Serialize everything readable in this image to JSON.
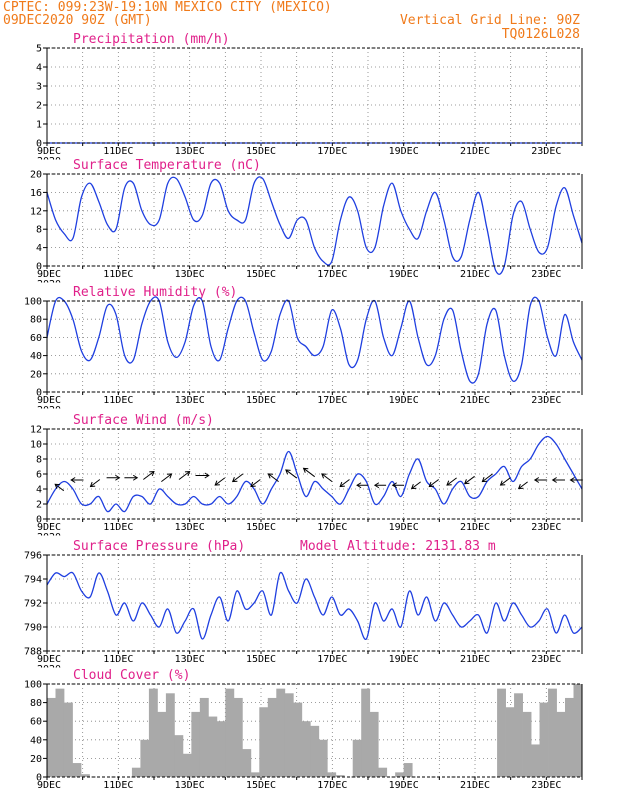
{
  "header": {
    "line1_left": "CPTEC:   099:23W-19:10N   MEXICO CITY (MEXICO)",
    "line2_left": "09DEC2020 90Z (GMT)",
    "line2_right": "Vertical Grid Line: 90Z",
    "line3_right": "TQ0126L028"
  },
  "colors": {
    "header": "#f07a1a",
    "title": "#e0208a",
    "line": "#1f3fe0",
    "bar": "#a9a9a9",
    "grid": "#7f7f7f"
  },
  "chart_data": [
    {
      "type": "line",
      "title": "Precipitation (mm/h)",
      "x_tick_labels": [
        "9DEC",
        "11DEC",
        "13DEC",
        "15DEC",
        "17DEC",
        "19DEC",
        "21DEC",
        "23DEC"
      ],
      "x_clipped_label": "2020",
      "ylim": [
        0,
        5
      ],
      "y_ticks": [
        0,
        1,
        2,
        3,
        4,
        5
      ],
      "grid": true,
      "series": [
        {
          "values": [
            0,
            0,
            0,
            0,
            0,
            0,
            0,
            0,
            0,
            0,
            0,
            0,
            0,
            0,
            0,
            0,
            0,
            0,
            0,
            0,
            0,
            0,
            0,
            0,
            0,
            0,
            0,
            0,
            0,
            0,
            0,
            0,
            0,
            0,
            0,
            0,
            0,
            0,
            0,
            0,
            0,
            0,
            0,
            0,
            0,
            0,
            0,
            0,
            0,
            0,
            0,
            0,
            0,
            0,
            0,
            0,
            0,
            0,
            0,
            0,
            0,
            0,
            0
          ]
        }
      ]
    },
    {
      "type": "line",
      "title": "Surface Temperature (nC)",
      "x_tick_labels": [
        "9DEC",
        "11DEC",
        "13DEC",
        "15DEC",
        "17DEC",
        "19DEC",
        "21DEC",
        "23DEC"
      ],
      "x_clipped_label": "2020",
      "ylim": [
        0,
        20
      ],
      "y_ticks": [
        0,
        4,
        8,
        12,
        16,
        20
      ],
      "grid": true,
      "series": [
        {
          "values": [
            16,
            10,
            7,
            6,
            15,
            18,
            14,
            9,
            8,
            17,
            18,
            12,
            9,
            10,
            18,
            19,
            15,
            10,
            11,
            18,
            18,
            12,
            10,
            10,
            18,
            19,
            14,
            9,
            6,
            10,
            10,
            4,
            1,
            1,
            10,
            15,
            12,
            4,
            4,
            13,
            18,
            12,
            8,
            6,
            12,
            16,
            10,
            2,
            2,
            10,
            16,
            8,
            -1,
            0,
            11,
            14,
            8,
            3,
            4,
            13,
            17,
            11,
            5
          ]
        }
      ]
    },
    {
      "type": "line",
      "title": "Relative Humidity (%)",
      "x_tick_labels": [
        "9DEC",
        "11DEC",
        "13DEC",
        "15DEC",
        "17DEC",
        "19DEC",
        "21DEC",
        "23DEC"
      ],
      "x_clipped_label": "2020",
      "ylim": [
        0,
        100
      ],
      "y_ticks": [
        0,
        20,
        40,
        60,
        80,
        100
      ],
      "grid": true,
      "series": [
        {
          "values": [
            60,
            100,
            100,
            80,
            45,
            35,
            60,
            95,
            85,
            40,
            35,
            75,
            100,
            100,
            55,
            38,
            55,
            95,
            100,
            50,
            35,
            70,
            100,
            100,
            65,
            35,
            45,
            85,
            100,
            60,
            50,
            40,
            50,
            90,
            70,
            30,
            35,
            80,
            100,
            60,
            40,
            70,
            100,
            60,
            30,
            40,
            80,
            90,
            45,
            12,
            20,
            75,
            90,
            40,
            12,
            30,
            95,
            100,
            60,
            40,
            85,
            55,
            35
          ]
        }
      ]
    },
    {
      "type": "line",
      "title": "Surface Wind (m/s)",
      "x_tick_labels": [
        "9DEC",
        "11DEC",
        "13DEC",
        "15DEC",
        "17DEC",
        "19DEC",
        "21DEC",
        "23DEC"
      ],
      "x_clipped_label": "2020",
      "ylim": [
        0,
        12
      ],
      "y_ticks": [
        0,
        2,
        4,
        6,
        8,
        10,
        12
      ],
      "grid": true,
      "series": [
        {
          "values": [
            2,
            4,
            5,
            4,
            2,
            2,
            3,
            1,
            2,
            1,
            3,
            3,
            2,
            4,
            3,
            2,
            2,
            3,
            2,
            2,
            3,
            2,
            3,
            5,
            4,
            2,
            4,
            6,
            9,
            6,
            3,
            5,
            4,
            3,
            2,
            4,
            6,
            5,
            2,
            3,
            5,
            3,
            6,
            8,
            5,
            4,
            2,
            4,
            5,
            3,
            3,
            5,
            6,
            7,
            5,
            7,
            8,
            10,
            11,
            10,
            8,
            6,
            4
          ]
        }
      ],
      "wind_arrows": [
        {
          "day": 9.35,
          "speed": 4.2,
          "dir": "nw"
        },
        {
          "day": 9.85,
          "speed": 5.2,
          "dir": "w"
        },
        {
          "day": 10.35,
          "speed": 4.8,
          "dir": "sw"
        },
        {
          "day": 10.85,
          "speed": 5.5,
          "dir": "e"
        },
        {
          "day": 11.35,
          "speed": 5.5,
          "dir": "e"
        },
        {
          "day": 11.85,
          "speed": 5.8,
          "dir": "ne"
        },
        {
          "day": 12.35,
          "speed": 5.5,
          "dir": "ne"
        },
        {
          "day": 12.85,
          "speed": 5.8,
          "dir": "ne"
        },
        {
          "day": 13.35,
          "speed": 5.8,
          "dir": "e"
        },
        {
          "day": 13.85,
          "speed": 5.0,
          "dir": "sw"
        },
        {
          "day": 14.35,
          "speed": 5.5,
          "dir": "sw"
        },
        {
          "day": 14.85,
          "speed": 4.8,
          "dir": "sw"
        },
        {
          "day": 15.35,
          "speed": 5.5,
          "dir": "nw"
        },
        {
          "day": 15.85,
          "speed": 6.0,
          "dir": "nw"
        },
        {
          "day": 16.35,
          "speed": 6.2,
          "dir": "nw"
        },
        {
          "day": 16.85,
          "speed": 5.5,
          "dir": "nw"
        },
        {
          "day": 17.35,
          "speed": 4.8,
          "dir": "sw"
        },
        {
          "day": 17.85,
          "speed": 4.5,
          "dir": "w"
        },
        {
          "day": 18.35,
          "speed": 4.5,
          "dir": "w"
        },
        {
          "day": 18.85,
          "speed": 4.5,
          "dir": "w"
        },
        {
          "day": 19.35,
          "speed": 4.5,
          "dir": "sw"
        },
        {
          "day": 19.85,
          "speed": 4.8,
          "dir": "sw"
        },
        {
          "day": 20.35,
          "speed": 5.0,
          "dir": "sw"
        },
        {
          "day": 20.85,
          "speed": 5.2,
          "dir": "sw"
        },
        {
          "day": 21.35,
          "speed": 5.5,
          "dir": "sw"
        },
        {
          "day": 21.85,
          "speed": 5.0,
          "dir": "sw"
        },
        {
          "day": 22.35,
          "speed": 4.5,
          "dir": "sw"
        },
        {
          "day": 22.85,
          "speed": 5.2,
          "dir": "w"
        },
        {
          "day": 23.35,
          "speed": 5.2,
          "dir": "w"
        },
        {
          "day": 23.85,
          "speed": 5.2,
          "dir": "w"
        }
      ]
    },
    {
      "type": "line",
      "title": "Surface Pressure (hPa)",
      "annotation": "Model Altitude: 2131.83 m",
      "x_tick_labels": [
        "9DEC",
        "11DEC",
        "13DEC",
        "15DEC",
        "17DEC",
        "19DEC",
        "21DEC",
        "23DEC"
      ],
      "x_clipped_label": "2020",
      "ylim": [
        788,
        796
      ],
      "y_ticks": [
        788,
        790,
        792,
        794,
        796
      ],
      "grid": true,
      "series": [
        {
          "values": [
            793.5,
            794.5,
            794.2,
            794.5,
            793,
            792.5,
            794.5,
            793,
            791,
            792,
            790.5,
            792,
            791,
            790,
            791.5,
            789.5,
            790.5,
            791.5,
            789,
            791,
            792.5,
            790.5,
            793,
            791.5,
            792,
            793,
            791,
            794.5,
            793,
            792,
            794,
            792.5,
            791,
            792.5,
            791,
            791.5,
            790.5,
            789,
            792,
            790.5,
            791.5,
            790,
            793,
            791,
            792.5,
            790.5,
            792,
            791,
            790,
            790.5,
            791,
            789.5,
            792,
            790.5,
            792,
            791,
            790,
            790.5,
            791.5,
            789.5,
            791,
            789.5,
            790
          ]
        }
      ]
    },
    {
      "type": "bar",
      "title": "Cloud Cover (%)",
      "x_tick_labels": [
        "9DEC",
        "11DEC",
        "13DEC",
        "15DEC",
        "17DEC",
        "19DEC",
        "21DEC",
        "23DEC"
      ],
      "x_clipped_label": "2020",
      "ylim": [
        0,
        100
      ],
      "y_ticks": [
        0,
        20,
        40,
        60,
        80,
        100
      ],
      "grid": true,
      "series": [
        {
          "values": [
            85,
            95,
            80,
            15,
            3,
            0,
            0,
            0,
            0,
            0,
            10,
            40,
            95,
            70,
            90,
            45,
            25,
            70,
            85,
            65,
            60,
            95,
            85,
            30,
            5,
            75,
            85,
            95,
            90,
            80,
            60,
            55,
            40,
            5,
            2,
            0,
            40,
            95,
            70,
            10,
            0,
            5,
            15,
            0,
            0,
            0,
            0,
            0,
            0,
            0,
            0,
            0,
            0,
            95,
            75,
            90,
            70,
            35,
            80,
            95,
            70,
            85,
            100
          ]
        }
      ]
    }
  ]
}
